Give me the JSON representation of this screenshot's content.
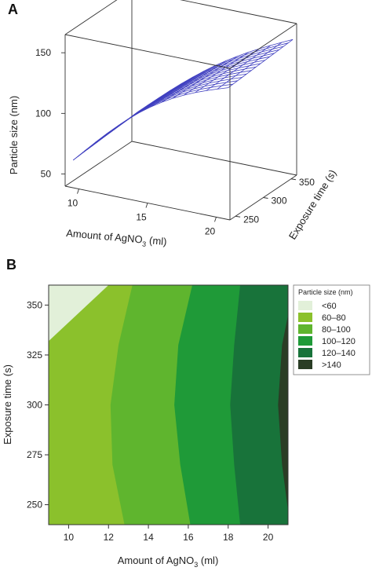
{
  "panels": {
    "a_label": "A",
    "b_label": "B"
  },
  "chart_data": [
    {
      "type": "surface3d",
      "panel": "A",
      "x": {
        "label_main": "Amount of AgNO",
        "label_sub": "3",
        "label_unit": " (ml)",
        "ticks": [
          "10",
          "15",
          "20"
        ],
        "tick_values": [
          10,
          15,
          20
        ],
        "range": [
          9,
          21
        ]
      },
      "y": {
        "label": "Exposure time (s)",
        "ticks": [
          "250",
          "300",
          "350"
        ],
        "tick_values": [
          250,
          300,
          350
        ],
        "range": [
          240,
          360
        ]
      },
      "z": {
        "label": "Particle size (nm)",
        "ticks": [
          "50",
          "100",
          "150"
        ],
        "tick_values": [
          50,
          100,
          150
        ],
        "range": [
          40,
          165
        ]
      },
      "surface_color": "#4040c0",
      "surface_corners": {
        "x_min_y_min": 62,
        "x_min_y_max": 66,
        "x_max_y_min": 148,
        "x_max_y_max": 152
      }
    },
    {
      "type": "contour",
      "panel": "B",
      "x": {
        "label_main": "Amount of AgNO",
        "label_sub": "3",
        "label_unit": " (ml)",
        "ticks": [
          "10",
          "12",
          "14",
          "16",
          "18",
          "20"
        ],
        "tick_values": [
          10,
          12,
          14,
          16,
          18,
          20
        ],
        "range": [
          9,
          21
        ]
      },
      "y": {
        "label": "Exposure time (s)",
        "ticks": [
          "250",
          "275",
          "300",
          "325",
          "350"
        ],
        "tick_values": [
          250,
          275,
          300,
          325,
          350
        ],
        "range": [
          240,
          360
        ]
      },
      "legend": {
        "title": "Particle size (nm)",
        "levels": [
          {
            "label": "<60",
            "color": "#e2f0d9"
          },
          {
            "label": "60–80",
            "color": "#8bc12c"
          },
          {
            "label": "80–100",
            "color": "#5fb52e"
          },
          {
            "label": "100–120",
            "color": "#1f9a38"
          },
          {
            "label": "120–140",
            "color": "#18733a"
          },
          {
            "label": ">140",
            "color": "#2a3d25"
          }
        ]
      },
      "contour_lines": [
        {
          "level": 60,
          "points": [
            [
              9,
              332
            ],
            [
              12,
              360
            ]
          ]
        },
        {
          "level": 80,
          "points": [
            [
              12.8,
              240
            ],
            [
              12.2,
              270
            ],
            [
              12.1,
              300
            ],
            [
              12.5,
              330
            ],
            [
              13.2,
              360
            ]
          ]
        },
        {
          "level": 100,
          "points": [
            [
              16.1,
              240
            ],
            [
              15.6,
              270
            ],
            [
              15.3,
              300
            ],
            [
              15.5,
              330
            ],
            [
              16.2,
              360
            ]
          ]
        },
        {
          "level": 120,
          "points": [
            [
              18.6,
              240
            ],
            [
              18.3,
              270
            ],
            [
              18.1,
              300
            ],
            [
              18.3,
              330
            ],
            [
              18.6,
              360
            ]
          ]
        },
        {
          "level": 140,
          "points": [
            [
              21,
              247
            ],
            [
              20.7,
              270
            ],
            [
              20.5,
              300
            ],
            [
              20.7,
              330
            ],
            [
              21,
              345
            ]
          ]
        }
      ]
    }
  ]
}
